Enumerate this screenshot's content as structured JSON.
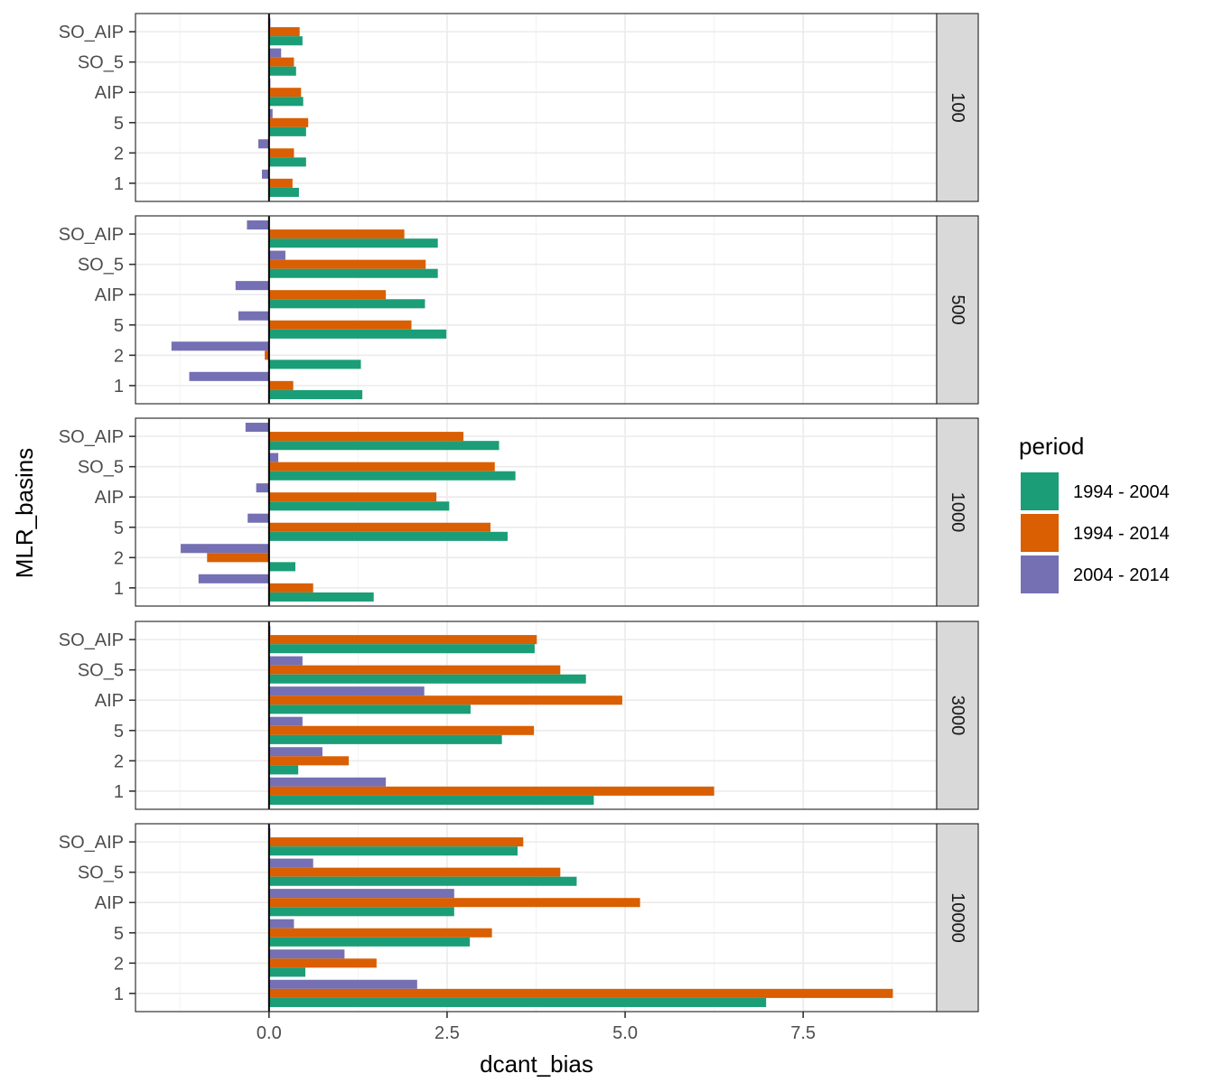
{
  "chart_data": {
    "type": "bar",
    "orientation": "horizontal",
    "xlabel": "dcant_bias",
    "ylabel": "MLR_basins",
    "xlim": [
      -1.875,
      9.375
    ],
    "x_ticks": [
      0.0,
      2.5,
      5.0,
      7.5
    ],
    "x_tick_labels": [
      "0.0",
      "2.5",
      "5.0",
      "7.5"
    ],
    "categories": [
      "SO_AIP",
      "SO_5",
      "AIP",
      "5",
      "2",
      "1"
    ],
    "legend": {
      "title": "period",
      "position": "right",
      "items": [
        "1994 - 2004",
        "1994 - 2014",
        "2004 - 2014"
      ]
    },
    "colors": {
      "1994 - 2004": "#1b9e77",
      "1994 - 2014": "#d95f02",
      "2004 - 2014": "#7570b3"
    },
    "zero_line": true,
    "grid": true,
    "facets": [
      {
        "strip": "100",
        "series": [
          {
            "name": "1994 - 2004",
            "values": [
              0.47,
              0.38,
              0.48,
              0.52,
              0.52,
              0.42
            ]
          },
          {
            "name": "1994 - 2014",
            "values": [
              0.43,
              0.35,
              0.45,
              0.55,
              0.35,
              0.33
            ]
          },
          {
            "name": "2004 - 2014",
            "values": [
              0.02,
              0.17,
              0.02,
              0.05,
              -0.15,
              -0.1
            ]
          }
        ]
      },
      {
        "strip": "500",
        "series": [
          {
            "name": "1994 - 2004",
            "values": [
              2.37,
              2.37,
              2.19,
              2.49,
              1.29,
              1.31
            ]
          },
          {
            "name": "1994 - 2014",
            "values": [
              1.9,
              2.2,
              1.64,
              2.0,
              -0.06,
              0.34
            ]
          },
          {
            "name": "2004 - 2014",
            "values": [
              -0.31,
              0.23,
              -0.47,
              -0.43,
              -1.37,
              -1.12
            ]
          }
        ]
      },
      {
        "strip": "1000",
        "series": [
          {
            "name": "1994 - 2004",
            "values": [
              3.23,
              3.46,
              2.53,
              3.35,
              0.37,
              1.47
            ]
          },
          {
            "name": "1994 - 2014",
            "values": [
              2.73,
              3.17,
              2.35,
              3.11,
              -0.87,
              0.62
            ]
          },
          {
            "name": "2004 - 2014",
            "values": [
              -0.33,
              0.13,
              -0.18,
              -0.3,
              -1.24,
              -0.99
            ]
          }
        ]
      },
      {
        "strip": "3000",
        "series": [
          {
            "name": "1994 - 2004",
            "values": [
              3.73,
              4.45,
              2.83,
              3.27,
              0.41,
              4.56
            ]
          },
          {
            "name": "1994 - 2014",
            "values": [
              3.76,
              4.09,
              4.96,
              3.72,
              1.12,
              6.25
            ]
          },
          {
            "name": "2004 - 2014",
            "values": [
              0.02,
              0.47,
              2.18,
              0.47,
              0.75,
              1.64
            ]
          }
        ]
      },
      {
        "strip": "10000",
        "series": [
          {
            "name": "1994 - 2004",
            "values": [
              3.49,
              4.32,
              2.6,
              2.82,
              0.51,
              6.98
            ]
          },
          {
            "name": "1994 - 2014",
            "values": [
              3.57,
              4.09,
              5.21,
              3.13,
              1.51,
              8.76
            ]
          },
          {
            "name": "2004 - 2014",
            "values": [
              0.02,
              0.62,
              2.6,
              0.35,
              1.06,
              2.08
            ]
          }
        ]
      }
    ]
  }
}
